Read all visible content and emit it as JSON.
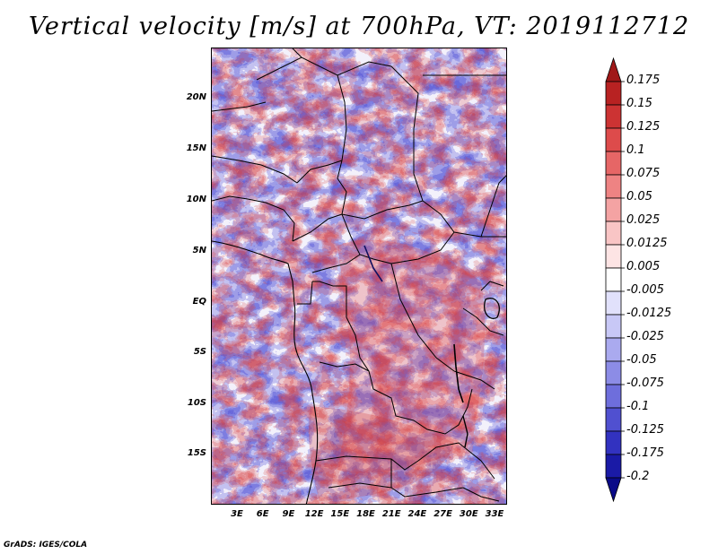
{
  "title": "Vertical velocity [m/s] at 700hPa, VT: 2019112712",
  "footer": "GrADS: IGES/COLA",
  "map": {
    "variable": "Vertical velocity",
    "units": "m/s",
    "level": "700hPa",
    "valid_time": "2019112712",
    "lat_labels": [
      "20N",
      "15N",
      "10N",
      "5N",
      "EQ",
      "5S",
      "10S",
      "15S"
    ],
    "lon_labels": [
      "3E",
      "6E",
      "9E",
      "12E",
      "15E",
      "18E",
      "21E",
      "24E",
      "27E",
      "30E",
      "33E"
    ],
    "lat_range": [
      -20,
      25
    ],
    "lon_range": [
      0,
      35
    ]
  },
  "colorbar": {
    "labels": [
      "0.175",
      "0.15",
      "0.125",
      "0.1",
      "0.075",
      "0.05",
      "0.025",
      "0.0125",
      "0.005",
      "-0.005",
      "-0.0125",
      "-0.025",
      "-0.05",
      "-0.075",
      "-0.1",
      "-0.125",
      "-0.175",
      "-0.2"
    ],
    "colors": [
      "#a01818",
      "#b82222",
      "#cc3333",
      "#dd4b4b",
      "#e66666",
      "#ee8383",
      "#f4a3a3",
      "#f9c5c5",
      "#fde4e4",
      "#ffffff",
      "#e1e1fb",
      "#c8c8f6",
      "#aaaaef",
      "#8c8ce6",
      "#6e6edc",
      "#5050d0",
      "#3232c0",
      "#1a1aa6",
      "#0a0a88"
    ]
  }
}
